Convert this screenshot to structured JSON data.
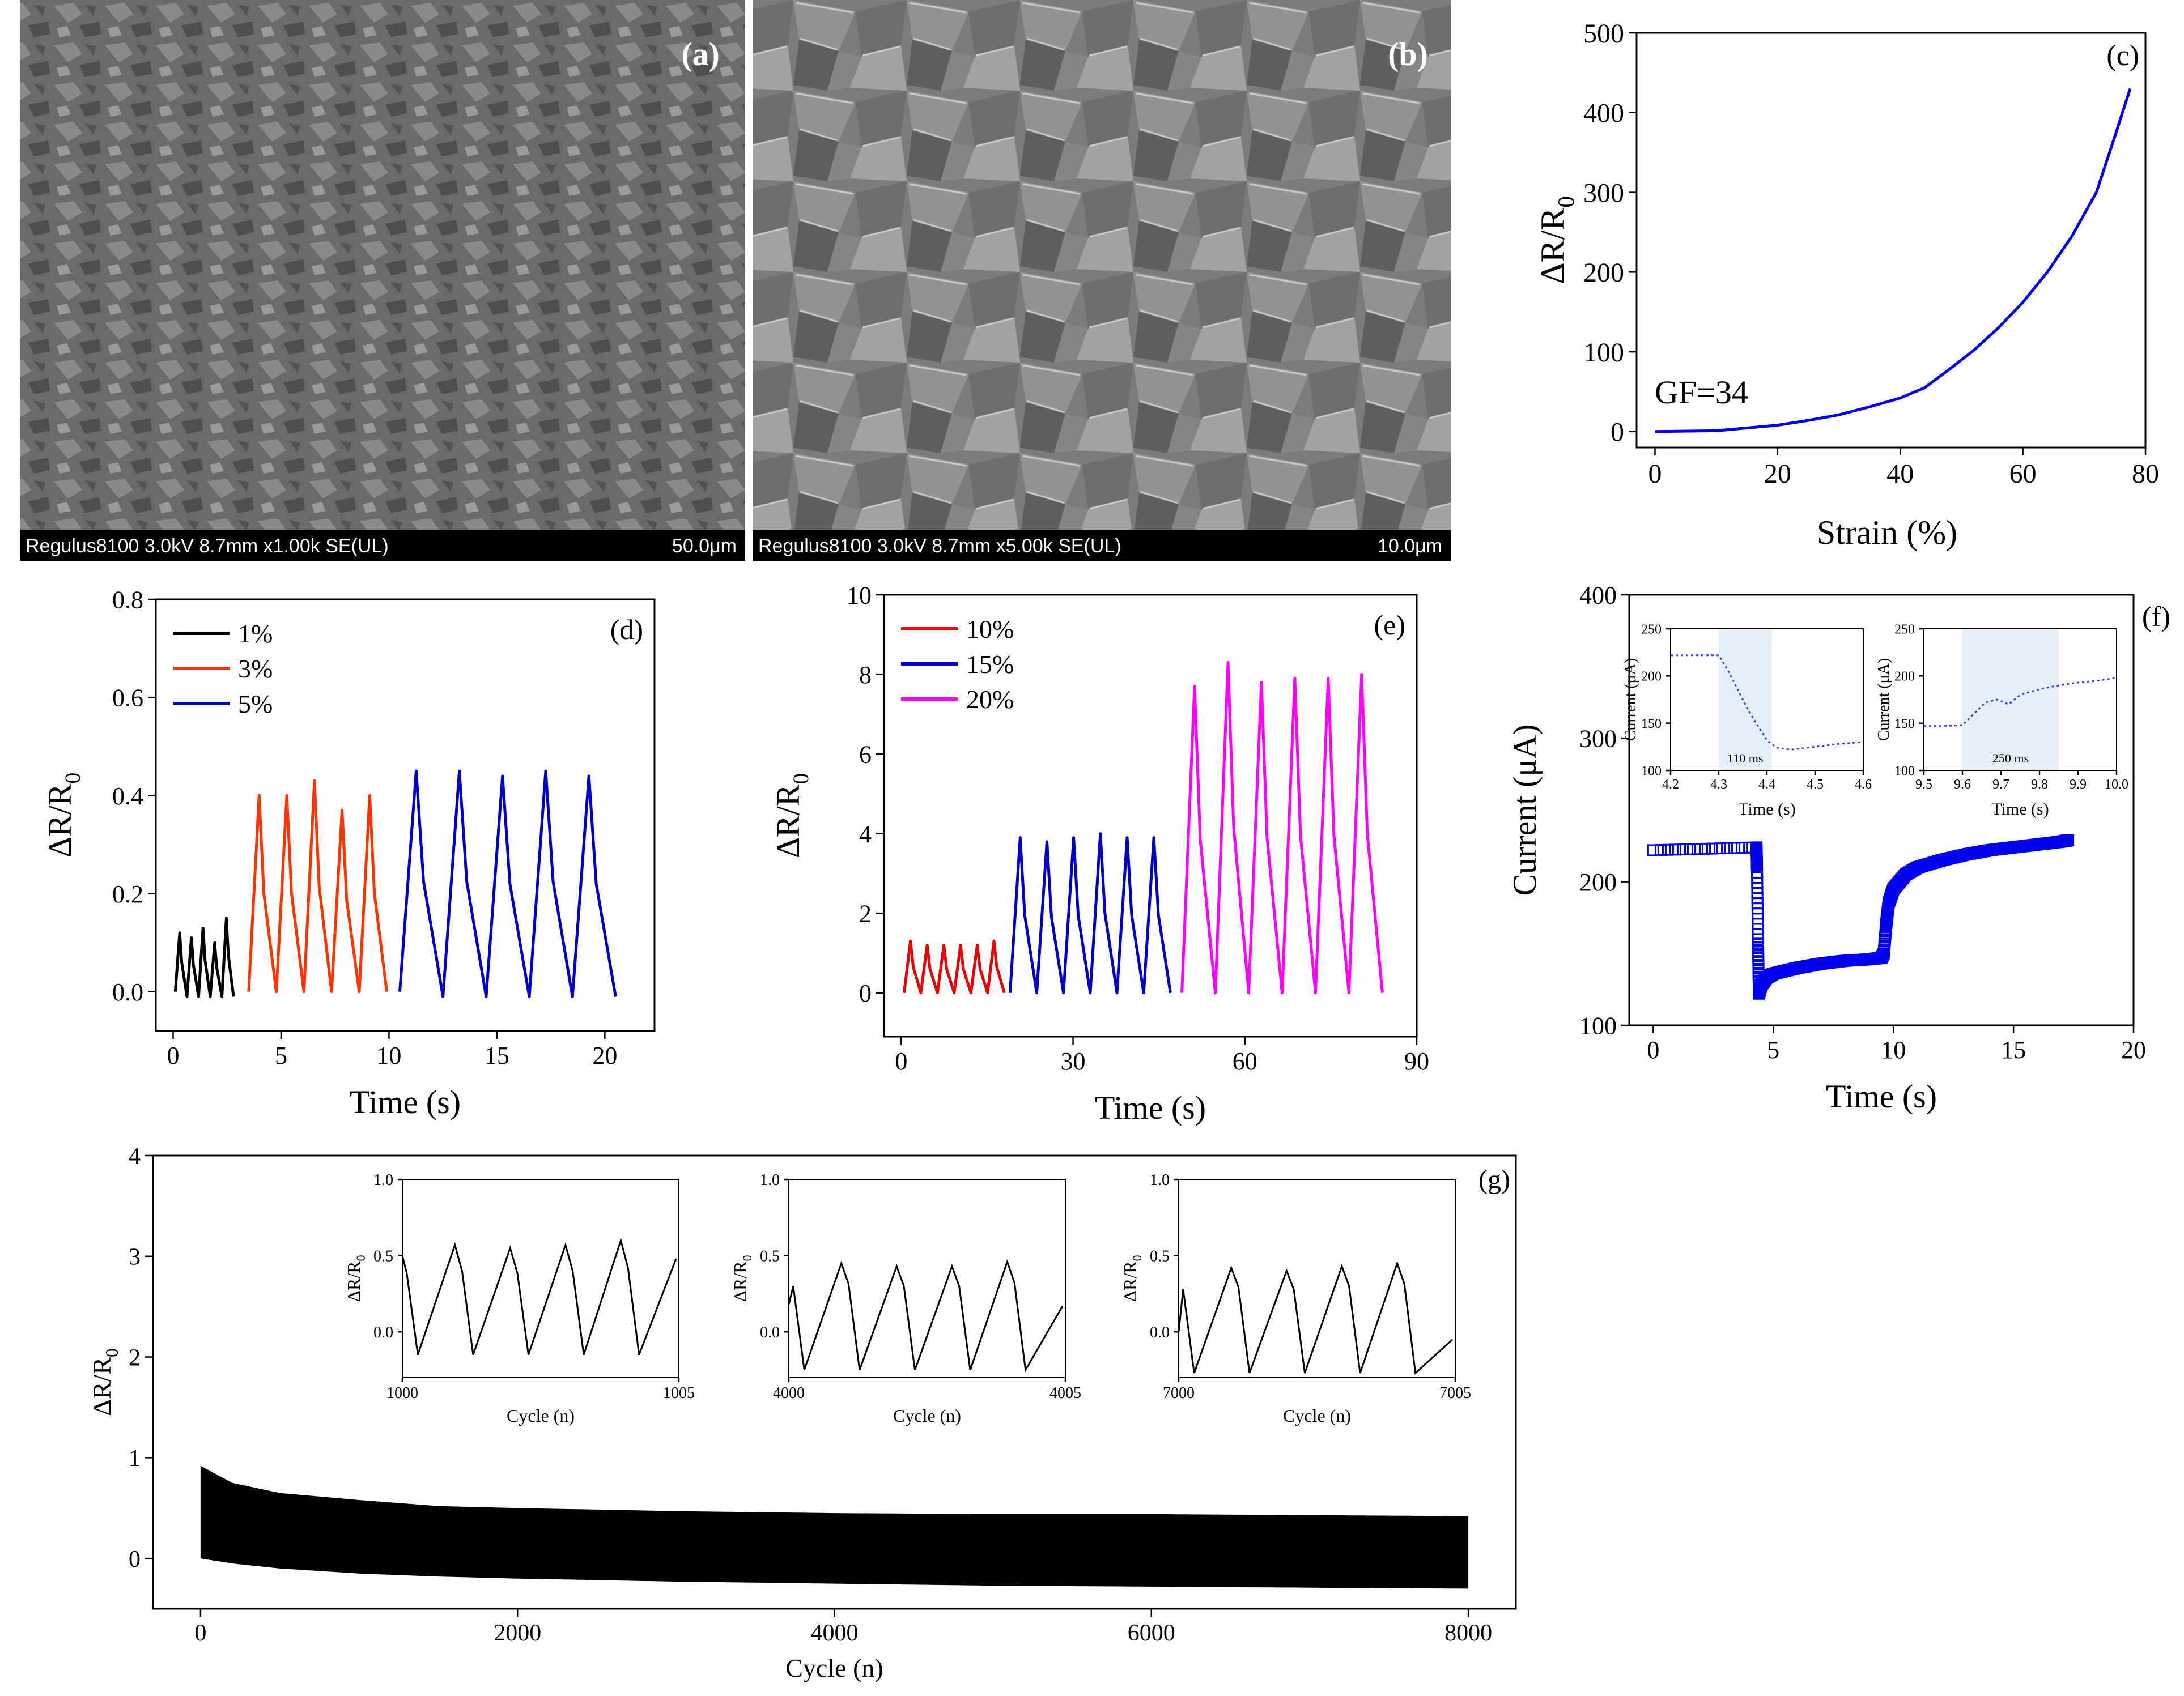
{
  "panels": {
    "a": {
      "label": "(a)",
      "sem_caption": "Regulus8100 3.0kV 8.7mm x1.00k SE(UL)",
      "scale_bar": "50.0μm"
    },
    "b": {
      "label": "(b)",
      "sem_caption": "Regulus8100 3.0kV 8.7mm x5.00k SE(UL)",
      "scale_bar": "10.0μm"
    }
  },
  "chart_data": [
    {
      "id": "c",
      "type": "line",
      "panel_label": "(c)",
      "xlabel": "Strain (%)",
      "ylabel": "ΔR/R0",
      "xlim": [
        -3,
        80
      ],
      "ylim": [
        -20,
        500
      ],
      "xticks": [
        0,
        20,
        40,
        60,
        80
      ],
      "yticks": [
        0,
        100,
        200,
        300,
        400,
        500
      ],
      "annotation": "GF=34",
      "series": [
        {
          "name": "response",
          "color": "#0000ee",
          "x": [
            0,
            10,
            20,
            25,
            30,
            35,
            40,
            44,
            48,
            52,
            56,
            60,
            64,
            68,
            72,
            75,
            77.5
          ],
          "y": [
            0,
            1,
            8,
            14,
            21,
            31,
            42,
            55,
            78,
            102,
            130,
            162,
            200,
            245,
            300,
            370,
            430
          ]
        }
      ]
    },
    {
      "id": "d",
      "type": "line",
      "panel_label": "(d)",
      "xlabel": "Time (s)",
      "ylabel": "ΔR/R0",
      "xlim": [
        -0.8,
        22.3
      ],
      "ylim": [
        -0.08,
        0.8
      ],
      "xticks": [
        0,
        5,
        10,
        15,
        20
      ],
      "yticks": [
        0.0,
        0.2,
        0.4,
        0.6,
        0.8
      ],
      "legend": "top-left",
      "series": [
        {
          "name": "1%",
          "color": "#000000",
          "t0": 0.1,
          "t1": 2.8,
          "cycles": 5,
          "peaks": [
            0.12,
            0.11,
            0.13,
            0.1,
            0.15
          ],
          "min": -0.01
        },
        {
          "name": "3%",
          "color": "#ff3300",
          "t0": 3.5,
          "t1": 9.9,
          "cycles": 5,
          "peaks": [
            0.4,
            0.4,
            0.43,
            0.37,
            0.4
          ],
          "min": 0.0
        },
        {
          "name": "5%",
          "color": "#0000cc",
          "t0": 10.5,
          "t1": 20.5,
          "cycles": 5,
          "peaks": [
            0.45,
            0.45,
            0.44,
            0.45,
            0.44
          ],
          "min": -0.01
        }
      ]
    },
    {
      "id": "e",
      "type": "line",
      "panel_label": "(e)",
      "xlabel": "Time (s)",
      "ylabel": "ΔR/R0",
      "xlim": [
        -3,
        90
      ],
      "ylim": [
        -1.1,
        10
      ],
      "xticks": [
        0,
        30,
        60,
        90
      ],
      "yticks": [
        0,
        2,
        4,
        6,
        8,
        10
      ],
      "legend": "top-left",
      "series": [
        {
          "name": "10%",
          "color": "#ee0000",
          "t0": 0.5,
          "t1": 18,
          "cycles": 6,
          "peaks": [
            1.3,
            1.2,
            1.2,
            1.2,
            1.2,
            1.3
          ],
          "min": 0.0
        },
        {
          "name": "15%",
          "color": "#0000cc",
          "t0": 19,
          "t1": 47,
          "cycles": 6,
          "peaks": [
            3.9,
            3.8,
            3.9,
            4.0,
            3.9,
            3.9
          ],
          "min": 0.0
        },
        {
          "name": "20%",
          "color": "#ff00ff",
          "t0": 49,
          "t1": 84,
          "cycles": 6,
          "peaks": [
            7.7,
            8.3,
            7.8,
            7.9,
            7.9,
            8.0
          ],
          "min": 0.0
        }
      ]
    },
    {
      "id": "f",
      "type": "scatter",
      "panel_label": "(f)",
      "xlabel": "Time (s)",
      "ylabel": "Current (μA)",
      "xlim": [
        -1,
        20
      ],
      "ylim": [
        100,
        400
      ],
      "xticks": [
        0,
        5,
        10,
        15,
        20
      ],
      "yticks": [
        100,
        200,
        300,
        400
      ],
      "series": [
        {
          "name": "current",
          "color": "#0000ee",
          "x": [
            0,
            4.3,
            4.32,
            4.36,
            4.4,
            4.5,
            4.7,
            5,
            6,
            7,
            8,
            9,
            9.5,
            9.6,
            9.7,
            9.8,
            10,
            10.5,
            11,
            12,
            13,
            14,
            15,
            16,
            17,
            17.3
          ],
          "y": [
            222,
            224,
            210,
            160,
            122,
            128,
            133,
            136,
            140,
            143,
            145,
            146,
            147,
            150,
            170,
            185,
            195,
            205,
            210,
            215,
            219,
            222,
            224,
            226,
            228,
            229
          ]
        }
      ],
      "insets": [
        {
          "xlabel": "Time (s)",
          "ylabel": "Current (μA)",
          "xlim": [
            4.2,
            4.6
          ],
          "ylim": [
            100,
            250
          ],
          "xticks": [
            4.2,
            4.3,
            4.4,
            4.5,
            4.6
          ],
          "yticks": [
            100,
            150,
            200,
            250
          ],
          "shade": [
            4.3,
            4.41
          ],
          "annotation": "110 ms",
          "x": [
            4.2,
            4.25,
            4.3,
            4.32,
            4.34,
            4.36,
            4.38,
            4.4,
            4.42,
            4.45,
            4.5,
            4.55,
            4.6
          ],
          "y": [
            222,
            222,
            222,
            205,
            185,
            165,
            148,
            132,
            124,
            122,
            125,
            128,
            130
          ]
        },
        {
          "xlabel": "Time (s)",
          "ylabel": "Current (μA)",
          "xlim": [
            9.5,
            10.0
          ],
          "ylim": [
            100,
            250
          ],
          "xticks": [
            9.5,
            9.6,
            9.7,
            9.8,
            9.9,
            10.0
          ],
          "yticks": [
            100,
            150,
            200,
            250
          ],
          "shade": [
            9.6,
            9.85
          ],
          "annotation": "250 ms",
          "x": [
            9.5,
            9.55,
            9.6,
            9.63,
            9.66,
            9.69,
            9.72,
            9.75,
            9.8,
            9.85,
            9.9,
            9.95,
            10.0
          ],
          "y": [
            147,
            147,
            148,
            160,
            172,
            175,
            170,
            180,
            186,
            190,
            193,
            195,
            198
          ]
        }
      ]
    },
    {
      "id": "g",
      "type": "area",
      "panel_label": "(g)",
      "xlabel": "Cycle (n)",
      "ylabel": "ΔR/R0",
      "xlim": [
        -300,
        8300
      ],
      "ylim": [
        -0.5,
        4
      ],
      "xticks": [
        0,
        2000,
        4000,
        6000,
        8000
      ],
      "yticks": [
        0,
        1,
        2,
        3,
        4
      ],
      "envelope": {
        "x": [
          0,
          200,
          500,
          1000,
          1500,
          2000,
          3000,
          4000,
          5000,
          6000,
          7000,
          8000
        ],
        "upper": [
          0.92,
          0.75,
          0.65,
          0.58,
          0.52,
          0.5,
          0.47,
          0.45,
          0.44,
          0.44,
          0.43,
          0.42
        ],
        "lower": [
          0.0,
          -0.05,
          -0.1,
          -0.15,
          -0.18,
          -0.2,
          -0.23,
          -0.25,
          -0.27,
          -0.28,
          -0.29,
          -0.3
        ]
      },
      "insets": [
        {
          "xlabel": "Cycle (n)",
          "ylabel": "ΔR/R0",
          "xlim": [
            1000,
            1005
          ],
          "ylim": [
            -0.3,
            1.0
          ],
          "xtick_labels": [
            "1000",
            "1005"
          ],
          "yticks": [
            0.0,
            0.5,
            1.0
          ],
          "peaks": [
            0.55,
            0.57,
            0.55,
            0.57,
            0.6,
            0.48
          ],
          "troughs": [
            -0.15,
            -0.15,
            -0.15,
            -0.15,
            -0.15
          ],
          "start": 0.5
        },
        {
          "xlabel": "Cycle (n)",
          "ylabel": "ΔR/R0",
          "xlim": [
            4000,
            4005
          ],
          "ylim": [
            -0.3,
            1.0
          ],
          "xtick_labels": [
            "4000",
            "4005"
          ],
          "yticks": [
            0.0,
            0.5,
            1.0
          ],
          "peaks": [
            0.43,
            0.45,
            0.43,
            0.43,
            0.46,
            0.17
          ],
          "troughs": [
            -0.25,
            -0.25,
            -0.25,
            -0.25,
            -0.25
          ],
          "start": 0.18
        },
        {
          "xlabel": "Cycle (n)",
          "ylabel": "ΔR/R0",
          "xlim": [
            7000,
            7005
          ],
          "ylim": [
            -0.3,
            1.0
          ],
          "xtick_labels": [
            "7000",
            "7005"
          ],
          "yticks": [
            0.0,
            0.5,
            1.0
          ],
          "peaks": [
            0.4,
            0.42,
            0.4,
            0.43,
            0.45,
            -0.05
          ],
          "troughs": [
            -0.27,
            -0.27,
            -0.27,
            -0.27,
            -0.27
          ],
          "start": 0.0
        }
      ]
    }
  ]
}
